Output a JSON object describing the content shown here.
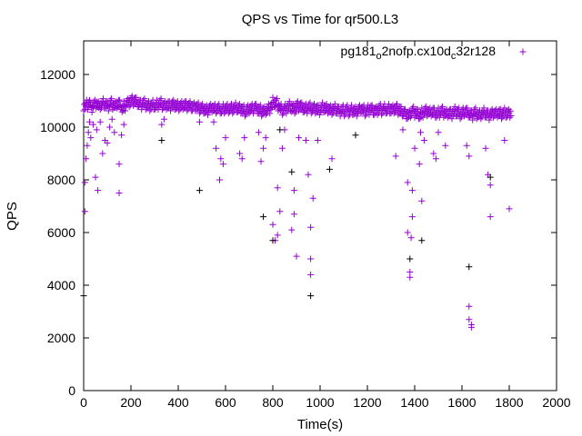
{
  "chart_data": {
    "type": "scatter",
    "title": "QPS vs Time for qr500.L3",
    "xlabel": "Time(s)",
    "ylabel": "QPS",
    "xlim": [
      0,
      2000
    ],
    "ylim": [
      0,
      13000
    ],
    "xticks": [
      0,
      200,
      400,
      600,
      800,
      1000,
      1200,
      1400,
      1600,
      1800,
      2000
    ],
    "yticks": [
      0,
      2000,
      4000,
      6000,
      8000,
      10000,
      12000
    ],
    "grid": false,
    "legend_position": "top-right",
    "series": [
      {
        "name": "pg181_o2nofp.cx10d_c32r128",
        "color": "#9400d3",
        "baseline_x_step": 10,
        "baseline": [
          10800,
          10850,
          10900,
          10750,
          10850,
          10900,
          10800,
          10850,
          10900,
          10850,
          10800,
          10900,
          10850,
          10800,
          10900,
          10850,
          10700,
          10800,
          10900,
          10950,
          11000,
          11000,
          10950,
          10900,
          10850,
          10900,
          10850,
          10800,
          10800,
          10850,
          10800,
          10850,
          10900,
          10850,
          10800,
          10850,
          10800,
          10850,
          10850,
          10800,
          10800,
          10800,
          10850,
          10800,
          10800,
          10800,
          10750,
          10800,
          10750,
          10700,
          10700,
          10650,
          10650,
          10700,
          10750,
          10700,
          10700,
          10700,
          10650,
          10700,
          10700,
          10700,
          10700,
          10700,
          10750,
          10700,
          10700,
          10650,
          10600,
          10650,
          10700,
          10700,
          10750,
          10700,
          10650,
          10600,
          10600,
          10650,
          10700,
          10800,
          10950,
          10900,
          10800,
          10700,
          10650,
          10700,
          10750,
          10800,
          10700,
          10700,
          10800,
          10800,
          10750,
          10700,
          10700,
          10750,
          10700,
          10700,
          10700,
          10650,
          10700,
          10750,
          10700,
          10700,
          10650,
          10650,
          10700,
          10650,
          10600,
          10650,
          10600,
          10650,
          10600,
          10650,
          10600,
          10600,
          10650,
          10700,
          10650,
          10600,
          10650,
          10700,
          10650,
          10600,
          10650,
          10700,
          10650,
          10700,
          10650,
          10700,
          10650,
          10700,
          10700,
          10650,
          10600,
          10550,
          10500,
          10450,
          10550,
          10600,
          10550,
          10500,
          10450,
          10550,
          10600,
          10600,
          10550,
          10600,
          10550,
          10500,
          10550,
          10600,
          10550,
          10500,
          10550,
          10500,
          10550,
          10600,
          10550,
          10500,
          10550,
          10600,
          10550,
          10500,
          10450,
          10550,
          10500,
          10450,
          10500,
          10550,
          10500,
          10450,
          10500,
          10550,
          10500,
          10550,
          10500,
          10500,
          10550,
          10500,
          10550
        ],
        "points": [
          [
            5,
            6800
          ],
          [
            5,
            7900
          ],
          [
            10,
            8800
          ],
          [
            15,
            9300
          ],
          [
            20,
            9800
          ],
          [
            25,
            10200
          ],
          [
            30,
            9600
          ],
          [
            40,
            10100
          ],
          [
            50,
            8100
          ],
          [
            55,
            9900
          ],
          [
            60,
            7600
          ],
          [
            70,
            10200
          ],
          [
            80,
            9000
          ],
          [
            90,
            9500
          ],
          [
            100,
            9400
          ],
          [
            110,
            10000
          ],
          [
            120,
            10300
          ],
          [
            130,
            9800
          ],
          [
            150,
            8600
          ],
          [
            150,
            7500
          ],
          [
            160,
            9700
          ],
          [
            170,
            10100
          ],
          [
            330,
            10100
          ],
          [
            340,
            10300
          ],
          [
            490,
            10200
          ],
          [
            550,
            10200
          ],
          [
            560,
            9200
          ],
          [
            575,
            8000
          ],
          [
            580,
            8800
          ],
          [
            590,
            8600
          ],
          [
            600,
            9600
          ],
          [
            660,
            9000
          ],
          [
            670,
            8800
          ],
          [
            680,
            9600
          ],
          [
            740,
            9800
          ],
          [
            750,
            8700
          ],
          [
            760,
            9200
          ],
          [
            770,
            9600
          ],
          [
            800,
            6300
          ],
          [
            810,
            5700
          ],
          [
            820,
            7700
          ],
          [
            820,
            5900
          ],
          [
            830,
            6800
          ],
          [
            840,
            9200
          ],
          [
            850,
            9900
          ],
          [
            880,
            6100
          ],
          [
            890,
            7600
          ],
          [
            890,
            6700
          ],
          [
            900,
            5100
          ],
          [
            910,
            9600
          ],
          [
            940,
            9500
          ],
          [
            950,
            8200
          ],
          [
            960,
            6200
          ],
          [
            960,
            5000
          ],
          [
            960,
            4400
          ],
          [
            970,
            7300
          ],
          [
            990,
            9500
          ],
          [
            1050,
            8800
          ],
          [
            1320,
            8900
          ],
          [
            1350,
            9900
          ],
          [
            1370,
            7900
          ],
          [
            1370,
            6000
          ],
          [
            1380,
            4500
          ],
          [
            1380,
            4300
          ],
          [
            1390,
            7600
          ],
          [
            1390,
            6600
          ],
          [
            1385,
            5800
          ],
          [
            1400,
            9200
          ],
          [
            1420,
            8600
          ],
          [
            1425,
            9800
          ],
          [
            1430,
            7200
          ],
          [
            1440,
            9500
          ],
          [
            1480,
            9000
          ],
          [
            1490,
            8800
          ],
          [
            1500,
            9800
          ],
          [
            1530,
            9300
          ],
          [
            1620,
            9300
          ],
          [
            1630,
            8900
          ],
          [
            1630,
            3200
          ],
          [
            1630,
            2700
          ],
          [
            1640,
            2400
          ],
          [
            1640,
            2500
          ],
          [
            1700,
            9200
          ],
          [
            1710,
            8200
          ],
          [
            1720,
            7800
          ],
          [
            1720,
            6600
          ],
          [
            1780,
            9500
          ],
          [
            1800,
            6900
          ]
        ]
      },
      {
        "name": "",
        "color": "#000000",
        "points": [
          [
            0,
            3600
          ],
          [
            330,
            9500
          ],
          [
            490,
            7600
          ],
          [
            760,
            6600
          ],
          [
            800,
            5700
          ],
          [
            830,
            9900
          ],
          [
            880,
            8300
          ],
          [
            960,
            3600
          ],
          [
            1040,
            8400
          ],
          [
            1150,
            9700
          ],
          [
            1380,
            5000
          ],
          [
            1430,
            5700
          ],
          [
            1630,
            4700
          ],
          [
            1720,
            8100
          ]
        ]
      }
    ]
  }
}
